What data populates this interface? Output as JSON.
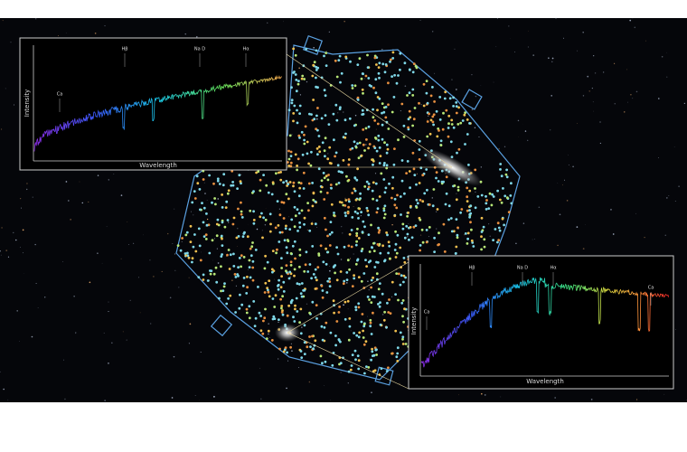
{
  "inset_top": {
    "y_label": "Intensity",
    "x_label": "Wavelength",
    "lines": [
      "Ca",
      "Hβ",
      "Na D",
      "Hα"
    ]
  },
  "inset_bottom": {
    "y_label": "Intensity",
    "x_label": "Wavelength",
    "lines": [
      "Ca",
      "Hβ",
      "Na D",
      "Hα",
      "Ca"
    ]
  }
}
